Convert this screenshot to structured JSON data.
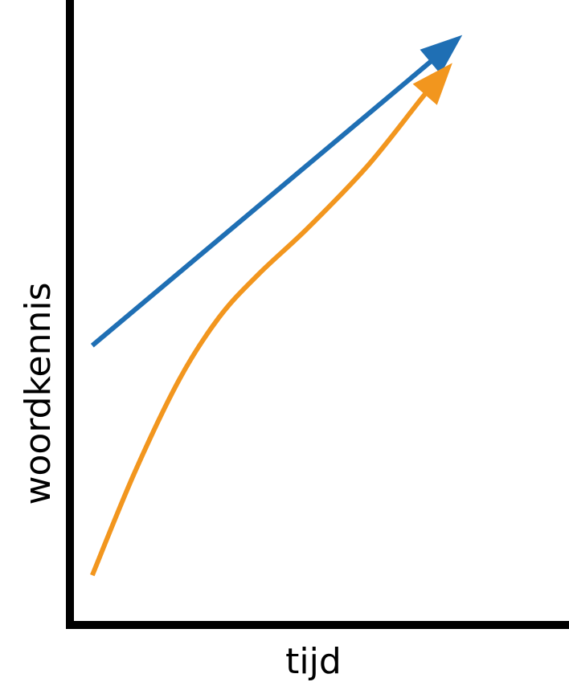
{
  "chart_data": {
    "type": "line",
    "title": "",
    "xlabel": "tijd",
    "ylabel": "woordkennis",
    "xlim": [
      0,
      10
    ],
    "ylim": [
      0,
      10
    ],
    "grid": false,
    "legend": "none",
    "series": [
      {
        "color": "#1f6fb4",
        "style": "straight-arrow",
        "x": [
          0.45,
          7.9
        ],
        "y": [
          4.5,
          9.5
        ]
      },
      {
        "color": "#f2961e",
        "style": "curved-arrow",
        "x": [
          0.45,
          1.3,
          2.2,
          3.0,
          3.8,
          4.8,
          6.0,
          7.1,
          7.7
        ],
        "y": [
          0.8,
          2.45,
          3.95,
          4.95,
          5.65,
          6.4,
          7.4,
          8.5,
          9.05
        ]
      }
    ]
  },
  "colors": {
    "axis": "#000000",
    "background": "#ffffff"
  }
}
